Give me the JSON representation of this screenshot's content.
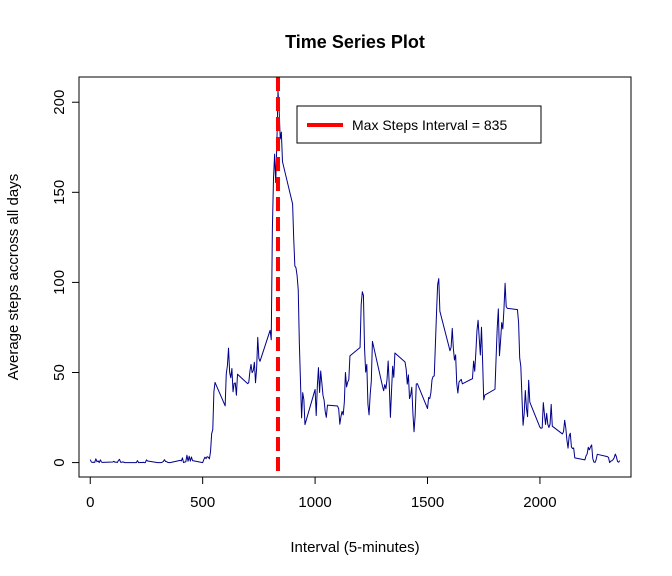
{
  "chart_data": {
    "type": "line",
    "title": "Time Series Plot",
    "xlabel": "Interval (5-minutes)",
    "ylabel": "Average steps accross all days",
    "xlim": [
      -50,
      2405
    ],
    "ylim": [
      -8,
      214
    ],
    "xticks": [
      0,
      500,
      1000,
      1500,
      2000
    ],
    "yticks": [
      0,
      50,
      100,
      150,
      200
    ],
    "xtick_labels": [
      "0",
      "500",
      "1000",
      "1500",
      "2000"
    ],
    "ytick_labels": [
      "0",
      "50",
      "100",
      "150",
      "200"
    ],
    "grid": false,
    "legend": {
      "placement": "top-right",
      "label": "Max Steps Interval =  835",
      "color": "#ff0000"
    },
    "vline": {
      "x": 835,
      "color": "#ff0000",
      "style": "dashed"
    },
    "series": [
      {
        "color": "#00008b",
        "points": [
          [
            0,
            1.7
          ],
          [
            5,
            0.3
          ],
          [
            10,
            0.1
          ],
          [
            15,
            0.2
          ],
          [
            20,
            0.1
          ],
          [
            25,
            2.1
          ],
          [
            30,
            0.5
          ],
          [
            35,
            0.9
          ],
          [
            40,
            0
          ],
          [
            45,
            1.5
          ],
          [
            50,
            0.3
          ],
          [
            55,
            0.1
          ],
          [
            100,
            0.3
          ],
          [
            105,
            0.7
          ],
          [
            110,
            0.2
          ],
          [
            115,
            0.3
          ],
          [
            120,
            0
          ],
          [
            125,
            1.1
          ],
          [
            130,
            1.8
          ],
          [
            135,
            0.2
          ],
          [
            140,
            0.2
          ],
          [
            145,
            0.4
          ],
          [
            150,
            0.2
          ],
          [
            155,
            0
          ],
          [
            200,
            0
          ],
          [
            205,
            0
          ],
          [
            210,
            1.1
          ],
          [
            215,
            0
          ],
          [
            220,
            0
          ],
          [
            225,
            0.1
          ],
          [
            230,
            0
          ],
          [
            235,
            0.2
          ],
          [
            240,
            0
          ],
          [
            245,
            0
          ],
          [
            250,
            1.5
          ],
          [
            255,
            0.9
          ],
          [
            300,
            0
          ],
          [
            305,
            0
          ],
          [
            310,
            0
          ],
          [
            315,
            0
          ],
          [
            320,
            0.2
          ],
          [
            325,
            0.6
          ],
          [
            330,
            1.6
          ],
          [
            335,
            0.6
          ],
          [
            340,
            0.5
          ],
          [
            345,
            0.1
          ],
          [
            350,
            0
          ],
          [
            355,
            0
          ],
          [
            400,
            1.2
          ],
          [
            405,
            0.9
          ],
          [
            410,
            2.6
          ],
          [
            415,
            0
          ],
          [
            420,
            0.3
          ],
          [
            425,
            0.4
          ],
          [
            430,
            4.1
          ],
          [
            435,
            0.7
          ],
          [
            440,
            3.5
          ],
          [
            445,
            0.8
          ],
          [
            450,
            3.1
          ],
          [
            455,
            1.1
          ],
          [
            500,
            0
          ],
          [
            505,
            1.6
          ],
          [
            510,
            3.0
          ],
          [
            515,
            2.2
          ],
          [
            520,
            3.3
          ],
          [
            525,
            3.0
          ],
          [
            530,
            2.1
          ],
          [
            535,
            6.1
          ],
          [
            540,
            16.0
          ],
          [
            545,
            18.3
          ],
          [
            550,
            39.5
          ],
          [
            555,
            44.5
          ],
          [
            600,
            31.5
          ],
          [
            605,
            49.3
          ],
          [
            610,
            53.8
          ],
          [
            615,
            63.5
          ],
          [
            620,
            50.0
          ],
          [
            625,
            47.1
          ],
          [
            630,
            52.2
          ],
          [
            635,
            39.3
          ],
          [
            640,
            44.0
          ],
          [
            645,
            44.2
          ],
          [
            650,
            37.4
          ],
          [
            655,
            49.0
          ],
          [
            700,
            43.8
          ],
          [
            705,
            44.4
          ],
          [
            710,
            50.5
          ],
          [
            715,
            54.5
          ],
          [
            720,
            49.9
          ],
          [
            725,
            51.0
          ],
          [
            730,
            55.7
          ],
          [
            735,
            44.3
          ],
          [
            740,
            52.3
          ],
          [
            745,
            69.5
          ],
          [
            750,
            57.8
          ],
          [
            755,
            56.2
          ],
          [
            800,
            73.4
          ],
          [
            805,
            68.2
          ],
          [
            810,
            129.4
          ],
          [
            815,
            157.5
          ],
          [
            820,
            171.2
          ],
          [
            825,
            155.4
          ],
          [
            830,
            177.3
          ],
          [
            835,
            206.2
          ],
          [
            840,
            195.9
          ],
          [
            845,
            179.6
          ],
          [
            850,
            183.4
          ],
          [
            855,
            167.0
          ],
          [
            900,
            143.5
          ],
          [
            905,
            124.0
          ],
          [
            910,
            109.1
          ],
          [
            915,
            108.1
          ],
          [
            920,
            103.7
          ],
          [
            925,
            95.9
          ],
          [
            930,
            66.2
          ],
          [
            935,
            45.2
          ],
          [
            940,
            24.8
          ],
          [
            945,
            38.8
          ],
          [
            950,
            35.0
          ],
          [
            955,
            21.1
          ],
          [
            1000,
            40.6
          ],
          [
            1005,
            26.1
          ],
          [
            1010,
            42.4
          ],
          [
            1015,
            52.7
          ],
          [
            1020,
            38.9
          ],
          [
            1025,
            50.8
          ],
          [
            1030,
            44.3
          ],
          [
            1035,
            37.4
          ],
          [
            1040,
            34.7
          ],
          [
            1045,
            28.3
          ],
          [
            1050,
            25.1
          ],
          [
            1055,
            31.9
          ],
          [
            1100,
            31.4
          ],
          [
            1105,
            29.7
          ],
          [
            1110,
            21.3
          ],
          [
            1115,
            25.5
          ],
          [
            1120,
            28.4
          ],
          [
            1125,
            26.5
          ],
          [
            1130,
            33.4
          ],
          [
            1135,
            49.98
          ],
          [
            1140,
            42.0
          ],
          [
            1145,
            44.6
          ],
          [
            1150,
            46.0
          ],
          [
            1155,
            59.2
          ],
          [
            1200,
            63.9
          ],
          [
            1205,
            87.7
          ],
          [
            1210,
            94.8
          ],
          [
            1215,
            92.8
          ],
          [
            1220,
            63.4
          ],
          [
            1225,
            50.2
          ],
          [
            1230,
            54.5
          ],
          [
            1235,
            32.4
          ],
          [
            1240,
            26.5
          ],
          [
            1245,
            37.7
          ],
          [
            1250,
            45.1
          ],
          [
            1255,
            67.3
          ],
          [
            1300,
            42.3
          ],
          [
            1305,
            39.9
          ],
          [
            1310,
            43.3
          ],
          [
            1315,
            40.98
          ],
          [
            1320,
            46.2
          ],
          [
            1325,
            56.4
          ],
          [
            1330,
            42.8
          ],
          [
            1335,
            25.1
          ],
          [
            1340,
            39.96
          ],
          [
            1345,
            53.5
          ],
          [
            1350,
            47.3
          ],
          [
            1355,
            60.8
          ],
          [
            1400,
            55.8
          ],
          [
            1405,
            51.96
          ],
          [
            1410,
            43.6
          ],
          [
            1415,
            48.7
          ],
          [
            1420,
            35.5
          ],
          [
            1425,
            37.5
          ],
          [
            1430,
            41.8
          ],
          [
            1435,
            27.5
          ],
          [
            1440,
            17.1
          ],
          [
            1445,
            26.1
          ],
          [
            1450,
            43.6
          ],
          [
            1455,
            43.8
          ],
          [
            1500,
            30.0
          ],
          [
            1505,
            36.1
          ],
          [
            1510,
            35.5
          ],
          [
            1515,
            38.8
          ],
          [
            1520,
            45.96
          ],
          [
            1525,
            47.8
          ],
          [
            1530,
            48.1
          ],
          [
            1535,
            65.3
          ],
          [
            1540,
            82.9
          ],
          [
            1545,
            98.7
          ],
          [
            1550,
            102.1
          ],
          [
            1555,
            83.96
          ],
          [
            1600,
            62.1
          ],
          [
            1605,
            64.1
          ],
          [
            1610,
            74.5
          ],
          [
            1615,
            63.2
          ],
          [
            1620,
            56.9
          ],
          [
            1625,
            59.8
          ],
          [
            1630,
            43.9
          ],
          [
            1635,
            38.6
          ],
          [
            1640,
            44.7
          ],
          [
            1645,
            45.5
          ],
          [
            1650,
            46.2
          ],
          [
            1655,
            43.7
          ],
          [
            1700,
            46.6
          ],
          [
            1705,
            56.3
          ],
          [
            1710,
            50.7
          ],
          [
            1715,
            61.2
          ],
          [
            1720,
            73.3
          ],
          [
            1725,
            79.0
          ],
          [
            1730,
            68.9
          ],
          [
            1735,
            59.7
          ],
          [
            1740,
            75.1
          ],
          [
            1745,
            56.5
          ],
          [
            1750,
            34.8
          ],
          [
            1755,
            37.5
          ],
          [
            1800,
            40.7
          ],
          [
            1805,
            58.0
          ],
          [
            1810,
            74.7
          ],
          [
            1815,
            85.3
          ],
          [
            1820,
            59.3
          ],
          [
            1825,
            67.8
          ],
          [
            1830,
            77.7
          ],
          [
            1835,
            74.2
          ],
          [
            1840,
            85.3
          ],
          [
            1845,
            99.5
          ],
          [
            1850,
            86.6
          ],
          [
            1855,
            85.6
          ],
          [
            1900,
            84.9
          ],
          [
            1905,
            77.8
          ],
          [
            1910,
            58.0
          ],
          [
            1915,
            53.4
          ],
          [
            1920,
            36.3
          ],
          [
            1925,
            20.7
          ],
          [
            1930,
            27.4
          ],
          [
            1935,
            40.0
          ],
          [
            1940,
            30.2
          ],
          [
            1945,
            25.5
          ],
          [
            1950,
            45.7
          ],
          [
            1955,
            33.5
          ],
          [
            2000,
            19.6
          ],
          [
            2005,
            19.0
          ],
          [
            2010,
            19.3
          ],
          [
            2015,
            33.3
          ],
          [
            2020,
            26.8
          ],
          [
            2025,
            21.2
          ],
          [
            2030,
            27.3
          ],
          [
            2035,
            21.3
          ],
          [
            2040,
            19.5
          ],
          [
            2045,
            21.3
          ],
          [
            2050,
            32.3
          ],
          [
            2055,
            20.2
          ],
          [
            2100,
            15.9
          ],
          [
            2105,
            17.2
          ],
          [
            2110,
            23.5
          ],
          [
            2115,
            19.2
          ],
          [
            2120,
            12.5
          ],
          [
            2125,
            8.0
          ],
          [
            2130,
            14.7
          ],
          [
            2135,
            16.3
          ],
          [
            2140,
            8.7
          ],
          [
            2145,
            7.8
          ],
          [
            2150,
            8.1
          ],
          [
            2155,
            2.6
          ],
          [
            2200,
            1.5
          ],
          [
            2205,
            3.7
          ],
          [
            2210,
            4.8
          ],
          [
            2215,
            8.5
          ],
          [
            2220,
            7.1
          ],
          [
            2225,
            8.7
          ],
          [
            2230,
            9.8
          ],
          [
            2235,
            2.2
          ],
          [
            2240,
            0.3
          ],
          [
            2245,
            0.1
          ],
          [
            2250,
            1.6
          ],
          [
            2255,
            4.6
          ],
          [
            2300,
            3.3
          ],
          [
            2305,
            2.8
          ],
          [
            2310,
            0
          ],
          [
            2315,
            0.8
          ],
          [
            2320,
            1.0
          ],
          [
            2325,
            1.6
          ],
          [
            2330,
            2.6
          ],
          [
            2335,
            4.7
          ],
          [
            2340,
            3.3
          ],
          [
            2345,
            0.6
          ],
          [
            2350,
            0.2
          ],
          [
            2355,
            1.1
          ]
        ]
      }
    ]
  }
}
